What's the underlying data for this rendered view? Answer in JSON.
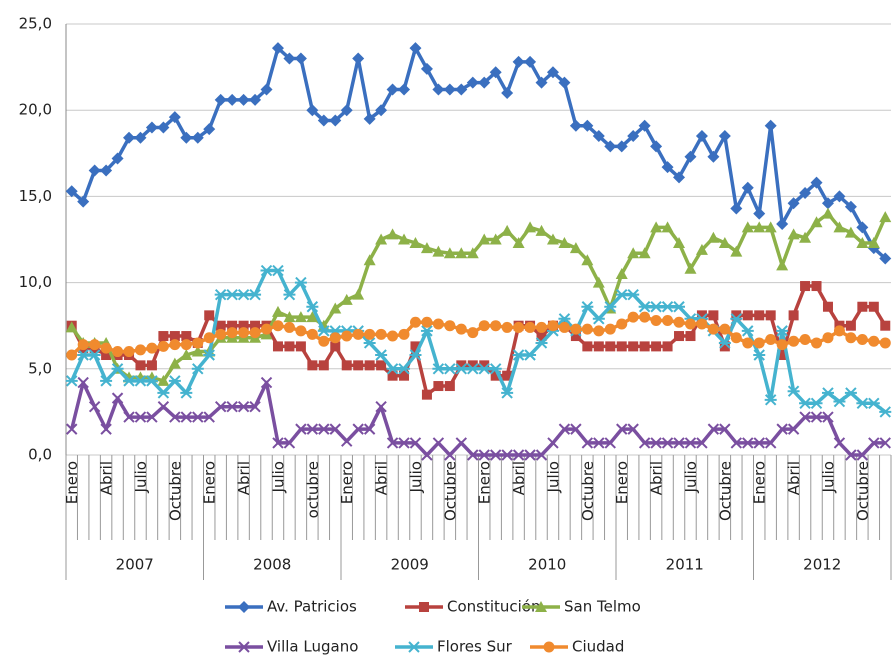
{
  "chart_data": {
    "type": "line",
    "categories": [
      "Enero",
      null,
      null,
      "Abril",
      null,
      null,
      "Julio",
      null,
      null,
      "Octubre",
      null,
      null,
      "Enero",
      null,
      null,
      "Abril",
      null,
      null,
      "Julio",
      null,
      null,
      "octubre",
      null,
      null,
      "Enero",
      null,
      null,
      "Abril",
      null,
      null,
      "Julio",
      null,
      null,
      "Octubre",
      null,
      null,
      "Enero",
      null,
      null,
      "Abril",
      null,
      null,
      "Julio",
      null,
      null,
      "Octubre",
      null,
      null,
      "Enero",
      null,
      null,
      "Abril",
      null,
      null,
      "Julio",
      null,
      null,
      "Octubre",
      null,
      null,
      "Enero",
      null,
      null,
      "Abril",
      null,
      null,
      "Julio",
      null,
      null,
      "Octubre",
      null,
      null
    ],
    "year_groups": [
      "2007",
      "2008",
      "2009",
      "2010",
      "2011",
      "2012"
    ],
    "ylim": [
      0,
      25
    ],
    "yticks": [
      {
        "value": 0,
        "label": "0,0"
      },
      {
        "value": 5,
        "label": "5,0"
      },
      {
        "value": 10,
        "label": "10,0"
      },
      {
        "value": 15,
        "label": "15,0"
      },
      {
        "value": 20,
        "label": "20,0"
      },
      {
        "value": 25,
        "label": "25,0"
      }
    ],
    "grid": true,
    "series": [
      {
        "name": "Av. Patricios",
        "color": "#3a6fbf",
        "marker": "diamond",
        "values": [
          15.3,
          14.7,
          16.5,
          16.5,
          17.2,
          18.4,
          18.4,
          19.0,
          19.0,
          19.6,
          18.4,
          18.4,
          18.9,
          20.6,
          20.6,
          20.6,
          20.6,
          21.2,
          23.6,
          23.0,
          23.0,
          20.0,
          19.4,
          19.4,
          20.0,
          23.0,
          19.5,
          20.0,
          21.2,
          21.2,
          23.6,
          22.4,
          21.2,
          21.2,
          21.2,
          21.6,
          21.6,
          22.2,
          21.0,
          22.8,
          22.8,
          21.6,
          22.2,
          21.6,
          19.1,
          19.1,
          18.5,
          17.9,
          17.9,
          18.5,
          19.1,
          17.9,
          16.7,
          16.1,
          17.3,
          18.5,
          17.3,
          18.5,
          14.3,
          15.5,
          14.0,
          19.1,
          13.4,
          14.6,
          15.2,
          15.8,
          14.6,
          15.0,
          14.4,
          13.2,
          12.0,
          11.4
        ]
      },
      {
        "name": "Constitución",
        "color": "#b8423e",
        "marker": "square",
        "values": [
          7.5,
          6.2,
          6.2,
          5.8,
          5.8,
          5.8,
          5.2,
          5.2,
          6.9,
          6.9,
          6.9,
          6.5,
          8.1,
          7.5,
          7.5,
          7.5,
          7.5,
          7.5,
          6.3,
          6.3,
          6.3,
          5.2,
          5.2,
          6.3,
          5.2,
          5.2,
          5.2,
          5.2,
          4.6,
          4.6,
          6.3,
          3.5,
          4.0,
          4.0,
          5.2,
          5.2,
          5.2,
          4.6,
          4.6,
          7.5,
          7.5,
          6.9,
          7.5,
          7.5,
          6.9,
          6.3,
          6.3,
          6.3,
          6.3,
          6.3,
          6.3,
          6.3,
          6.3,
          6.9,
          6.9,
          8.1,
          8.1,
          6.3,
          8.1,
          8.1,
          8.1,
          8.1,
          5.8,
          8.1,
          9.8,
          9.8,
          8.6,
          7.5,
          7.5,
          8.6,
          8.6,
          7.5
        ]
      },
      {
        "name": "San Telmo",
        "color": "#8db148",
        "marker": "triangle",
        "values": [
          7.4,
          6.5,
          6.5,
          6.5,
          5.0,
          4.5,
          4.5,
          4.5,
          4.3,
          5.3,
          5.8,
          6.0,
          6.0,
          6.8,
          6.8,
          6.8,
          6.8,
          7.0,
          8.3,
          8.0,
          8.0,
          8.0,
          7.5,
          8.5,
          9.0,
          9.3,
          11.3,
          12.5,
          12.8,
          12.5,
          12.3,
          12.0,
          11.8,
          11.7,
          11.7,
          11.7,
          12.5,
          12.5,
          13.0,
          12.3,
          13.2,
          13.0,
          12.5,
          12.3,
          12.0,
          11.3,
          10.0,
          8.5,
          10.5,
          11.7,
          11.7,
          13.2,
          13.2,
          12.3,
          10.8,
          11.9,
          12.6,
          12.3,
          11.8,
          13.2,
          13.2,
          13.2,
          11.0,
          12.8,
          12.6,
          13.5,
          14.0,
          13.2,
          12.9,
          12.3,
          12.3,
          13.8
        ]
      },
      {
        "name": "Villa Lugano",
        "color": "#7a4fa0",
        "marker": "x",
        "values": [
          1.5,
          4.2,
          2.8,
          1.5,
          3.3,
          2.2,
          2.2,
          2.2,
          2.8,
          2.2,
          2.2,
          2.2,
          2.2,
          2.8,
          2.8,
          2.8,
          2.8,
          4.2,
          0.7,
          0.7,
          1.5,
          1.5,
          1.5,
          1.5,
          0.8,
          1.5,
          1.5,
          2.8,
          0.7,
          0.7,
          0.7,
          0.0,
          0.7,
          0.0,
          0.7,
          0.0,
          0.0,
          0.0,
          0.0,
          0.0,
          0.0,
          0.0,
          0.7,
          1.5,
          1.5,
          0.7,
          0.7,
          0.7,
          1.5,
          1.5,
          0.7,
          0.7,
          0.7,
          0.7,
          0.7,
          0.7,
          1.5,
          1.5,
          0.7,
          0.7,
          0.7,
          0.7,
          1.5,
          1.5,
          2.2,
          2.2,
          2.2,
          0.7,
          0.0,
          0.0,
          0.7,
          0.7
        ]
      },
      {
        "name": "Flores Sur",
        "color": "#45b3cf",
        "marker": "star",
        "values": [
          4.3,
          5.8,
          5.8,
          4.3,
          5.0,
          4.3,
          4.3,
          4.3,
          3.6,
          4.3,
          3.6,
          5.0,
          5.8,
          9.3,
          9.3,
          9.3,
          9.3,
          10.7,
          10.7,
          9.3,
          10.0,
          8.6,
          7.2,
          7.2,
          7.2,
          7.2,
          6.5,
          5.8,
          5.0,
          5.0,
          5.8,
          7.2,
          5.0,
          5.0,
          5.0,
          5.0,
          5.0,
          5.0,
          3.6,
          5.8,
          5.8,
          6.5,
          7.2,
          7.9,
          7.2,
          8.6,
          7.9,
          8.6,
          9.3,
          9.3,
          8.6,
          8.6,
          8.6,
          8.6,
          7.9,
          7.9,
          7.2,
          6.5,
          7.9,
          7.2,
          5.8,
          3.2,
          7.2,
          3.7,
          3.0,
          3.0,
          3.6,
          3.1,
          3.6,
          3.0,
          3.0,
          2.5
        ]
      },
      {
        "name": "Ciudad",
        "color": "#f08a2e",
        "marker": "circle",
        "values": [
          5.8,
          6.4,
          6.4,
          6.2,
          6.0,
          6.0,
          6.1,
          6.2,
          6.3,
          6.4,
          6.4,
          6.5,
          6.8,
          7.0,
          7.1,
          7.1,
          7.1,
          7.3,
          7.5,
          7.4,
          7.2,
          7.0,
          6.6,
          6.8,
          6.9,
          7.0,
          7.0,
          7.0,
          6.9,
          7.0,
          7.7,
          7.7,
          7.6,
          7.5,
          7.3,
          7.1,
          7.5,
          7.5,
          7.4,
          7.4,
          7.4,
          7.4,
          7.5,
          7.4,
          7.3,
          7.3,
          7.2,
          7.3,
          7.6,
          8.0,
          8.0,
          7.8,
          7.8,
          7.7,
          7.6,
          7.6,
          7.3,
          7.3,
          6.8,
          6.5,
          6.5,
          6.7,
          6.4,
          6.6,
          6.7,
          6.5,
          6.8,
          7.2,
          6.8,
          6.7,
          6.6,
          6.5
        ]
      }
    ]
  }
}
